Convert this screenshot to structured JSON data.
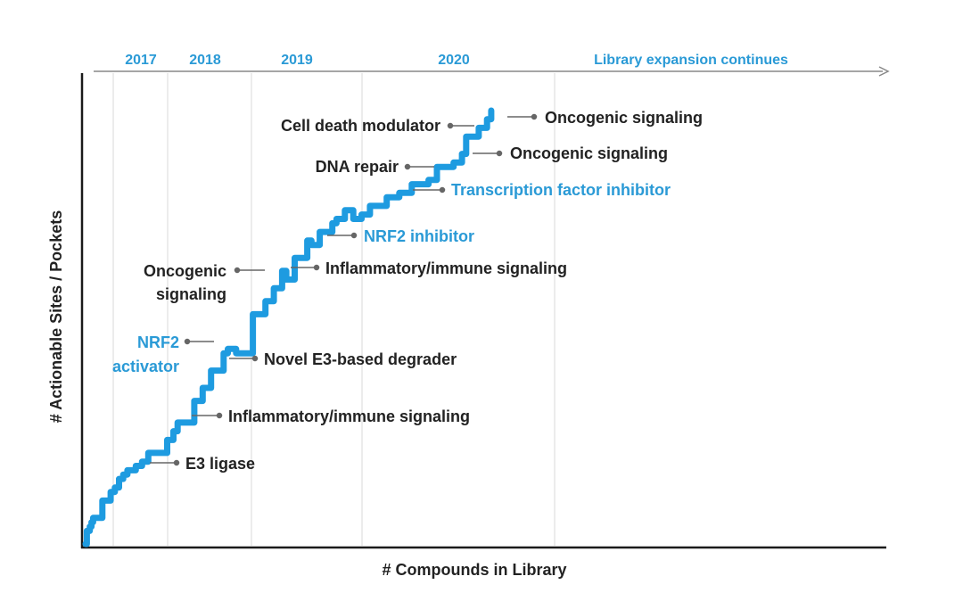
{
  "chart_data": {
    "type": "line",
    "title": "",
    "xlabel": "# Compounds in Library",
    "ylabel": "# Actionable Sites / Pockets",
    "grid": "vertical-year-dividers",
    "colors": {
      "line": "#1e9be0",
      "blue_label": "#2a9ad6",
      "dark_label": "#222222",
      "axis": "#1a1a1a",
      "grid": "#d9d9d9",
      "leader": "#666666"
    },
    "years": [
      "2017",
      "2018",
      "2019",
      "2020",
      "Library expansion continues"
    ],
    "series": [
      {
        "values_description": "approximate relative library curve (x = compounds, y = sites), arbitrary 0-100 units",
        "x": [
          0,
          0.3,
          1,
          1.4,
          1.8,
          3,
          4,
          5,
          6,
          7,
          8,
          9,
          10,
          11,
          12,
          13.5,
          15,
          16,
          17,
          19.5,
          21,
          22,
          23,
          26,
          27,
          28,
          30,
          33,
          34,
          36,
          38,
          40,
          42,
          43,
          45,
          47,
          48,
          50,
          53,
          54,
          56,
          58,
          59,
          60,
          62,
          64,
          66,
          68,
          72,
          73,
          75,
          77,
          78,
          81,
          82,
          83,
          84,
          86,
          88,
          89,
          90,
          91,
          93,
          94,
          95,
          96,
          97
        ],
        "y": [
          0,
          3,
          4,
          5,
          6,
          6,
          10,
          10,
          12,
          13,
          15,
          16,
          17,
          17,
          18,
          19,
          21,
          21,
          21,
          24,
          26,
          28,
          28,
          33,
          33,
          36,
          40,
          44,
          45,
          44,
          44,
          53,
          53,
          56,
          59,
          63,
          61,
          66,
          70,
          69,
          72,
          72,
          74,
          75,
          77,
          75,
          76,
          78,
          80,
          80,
          81,
          81,
          83,
          83,
          84,
          84,
          87,
          87,
          88,
          88,
          90,
          94,
          94,
          96,
          96,
          98,
          100
        ]
      }
    ],
    "annotations": [
      {
        "text": "Oncogenic signaling",
        "color": "dark"
      },
      {
        "text": "Cell death modulator",
        "color": "dark"
      },
      {
        "text": "Oncogenic signaling",
        "color": "dark"
      },
      {
        "text": "DNA repair",
        "color": "dark"
      },
      {
        "text": "Transcription factor inhibitor",
        "color": "blue"
      },
      {
        "text": "NRF2 inhibitor",
        "color": "blue"
      },
      {
        "text": "Inflammatory/immune signaling",
        "color": "dark"
      },
      {
        "text": "Oncogenic",
        "color": "dark"
      },
      {
        "text": "signaling",
        "color": "dark"
      },
      {
        "text": "NRF2",
        "color": "blue"
      },
      {
        "text": "activator",
        "color": "blue"
      },
      {
        "text": "Novel E3-based degrader",
        "color": "dark"
      },
      {
        "text": "Inflammatory/immune signaling",
        "color": "dark"
      },
      {
        "text": "E3 ligase",
        "color": "dark"
      }
    ]
  }
}
